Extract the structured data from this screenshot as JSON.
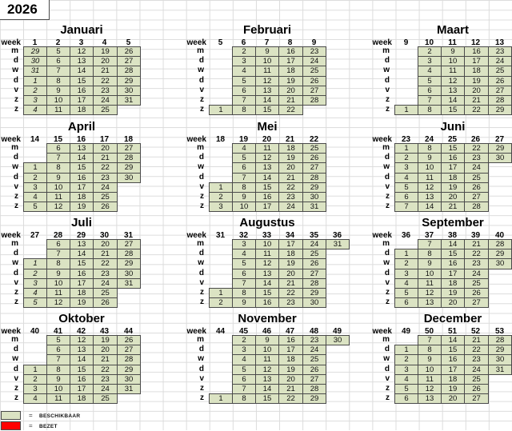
{
  "year": "2026",
  "week_header_label": "week",
  "day_labels": [
    "m",
    "d",
    "w",
    "d",
    "v",
    "z",
    "z"
  ],
  "colors": {
    "available": "#dbe3c3",
    "occupied": "#ff0000",
    "cell_border": "#4a4a4a",
    "gridline": "#dcdcdc"
  },
  "legend": {
    "separator": "=",
    "items": [
      {
        "name": "beschikbaar",
        "label": "BESCHIKBAAR",
        "color": "#dbe3c3"
      },
      {
        "name": "bezet",
        "label": "BEZET",
        "color": "#ff0000"
      }
    ]
  },
  "months": [
    {
      "name": "Januari",
      "weeks": [
        "1",
        "2",
        "3",
        "4",
        "5"
      ],
      "italic_week_col": 0,
      "days": [
        [
          "29",
          "5",
          "12",
          "19",
          "26"
        ],
        [
          "30",
          "6",
          "13",
          "20",
          "27"
        ],
        [
          "31",
          "7",
          "14",
          "21",
          "28"
        ],
        [
          "1",
          "8",
          "15",
          "22",
          "29"
        ],
        [
          "2",
          "9",
          "16",
          "23",
          "30"
        ],
        [
          "3",
          "10",
          "17",
          "24",
          "31"
        ],
        [
          "4",
          "11",
          "18",
          "25",
          ""
        ]
      ]
    },
    {
      "name": "Februari",
      "weeks": [
        "5",
        "6",
        "7",
        "8",
        "9"
      ],
      "italic_week_col": null,
      "days": [
        [
          "",
          "2",
          "9",
          "16",
          "23"
        ],
        [
          "",
          "3",
          "10",
          "17",
          "24"
        ],
        [
          "",
          "4",
          "11",
          "18",
          "25"
        ],
        [
          "",
          "5",
          "12",
          "19",
          "26"
        ],
        [
          "",
          "6",
          "13",
          "20",
          "27"
        ],
        [
          "",
          "7",
          "14",
          "21",
          "28"
        ],
        [
          "1",
          "8",
          "15",
          "22",
          ""
        ]
      ]
    },
    {
      "name": "Maart",
      "weeks": [
        "9",
        "10",
        "11",
        "12",
        "13"
      ],
      "italic_week_col": null,
      "days": [
        [
          "",
          "2",
          "9",
          "16",
          "23"
        ],
        [
          "",
          "3",
          "10",
          "17",
          "24"
        ],
        [
          "",
          "4",
          "11",
          "18",
          "25"
        ],
        [
          "",
          "5",
          "12",
          "19",
          "26"
        ],
        [
          "",
          "6",
          "13",
          "20",
          "27"
        ],
        [
          "",
          "7",
          "14",
          "21",
          "28"
        ],
        [
          "1",
          "8",
          "15",
          "22",
          "29"
        ]
      ]
    },
    {
      "name": "April",
      "weeks": [
        "14",
        "15",
        "16",
        "17",
        "18"
      ],
      "italic_week_col": null,
      "days": [
        [
          "",
          "6",
          "13",
          "20",
          "27"
        ],
        [
          "",
          "7",
          "14",
          "21",
          "28"
        ],
        [
          "1",
          "8",
          "15",
          "22",
          "29"
        ],
        [
          "2",
          "9",
          "16",
          "23",
          "30"
        ],
        [
          "3",
          "10",
          "17",
          "24",
          ""
        ],
        [
          "4",
          "11",
          "18",
          "25",
          ""
        ],
        [
          "5",
          "12",
          "19",
          "26",
          ""
        ]
      ]
    },
    {
      "name": "Mei",
      "weeks": [
        "18",
        "19",
        "20",
        "21",
        "22"
      ],
      "italic_week_col": null,
      "days": [
        [
          "",
          "4",
          "11",
          "18",
          "25"
        ],
        [
          "",
          "5",
          "12",
          "19",
          "26"
        ],
        [
          "",
          "6",
          "13",
          "20",
          "27"
        ],
        [
          "",
          "7",
          "14",
          "21",
          "28"
        ],
        [
          "1",
          "8",
          "15",
          "22",
          "29"
        ],
        [
          "2",
          "9",
          "16",
          "23",
          "30"
        ],
        [
          "3",
          "10",
          "17",
          "24",
          "31"
        ]
      ]
    },
    {
      "name": "Juni",
      "weeks": [
        "23",
        "24",
        "25",
        "26",
        "27"
      ],
      "italic_week_col": null,
      "days": [
        [
          "1",
          "8",
          "15",
          "22",
          "29"
        ],
        [
          "2",
          "9",
          "16",
          "23",
          "30"
        ],
        [
          "3",
          "10",
          "17",
          "24",
          ""
        ],
        [
          "4",
          "11",
          "18",
          "25",
          ""
        ],
        [
          "5",
          "12",
          "19",
          "26",
          ""
        ],
        [
          "6",
          "13",
          "20",
          "27",
          ""
        ],
        [
          "7",
          "14",
          "21",
          "28",
          ""
        ]
      ]
    },
    {
      "name": "Juli",
      "weeks": [
        "27",
        "28",
        "29",
        "30",
        "31"
      ],
      "italic_week_col": 0,
      "days": [
        [
          "",
          "6",
          "13",
          "20",
          "27"
        ],
        [
          "",
          "7",
          "14",
          "21",
          "28"
        ],
        [
          "1",
          "8",
          "15",
          "22",
          "29"
        ],
        [
          "2",
          "9",
          "16",
          "23",
          "30"
        ],
        [
          "3",
          "10",
          "17",
          "24",
          "31"
        ],
        [
          "4",
          "11",
          "18",
          "25",
          ""
        ],
        [
          "5",
          "12",
          "19",
          "26",
          ""
        ]
      ]
    },
    {
      "name": "Augustus",
      "weeks": [
        "31",
        "32",
        "33",
        "34",
        "35",
        "36"
      ],
      "italic_week_col": null,
      "days": [
        [
          "",
          "3",
          "10",
          "17",
          "24",
          "31"
        ],
        [
          "",
          "4",
          "11",
          "18",
          "25",
          ""
        ],
        [
          "",
          "5",
          "12",
          "19",
          "26",
          ""
        ],
        [
          "",
          "6",
          "13",
          "20",
          "27",
          ""
        ],
        [
          "",
          "7",
          "14",
          "21",
          "28",
          ""
        ],
        [
          "1",
          "8",
          "15",
          "22",
          "29",
          ""
        ],
        [
          "2",
          "9",
          "16",
          "23",
          "30",
          ""
        ]
      ]
    },
    {
      "name": "September",
      "weeks": [
        "36",
        "37",
        "38",
        "39",
        "40"
      ],
      "italic_week_col": null,
      "days": [
        [
          "",
          "7",
          "14",
          "21",
          "28"
        ],
        [
          "1",
          "8",
          "15",
          "22",
          "29"
        ],
        [
          "2",
          "9",
          "16",
          "23",
          "30"
        ],
        [
          "3",
          "10",
          "17",
          "24",
          ""
        ],
        [
          "4",
          "11",
          "18",
          "25",
          ""
        ],
        [
          "5",
          "12",
          "19",
          "26",
          ""
        ],
        [
          "6",
          "13",
          "20",
          "27",
          ""
        ]
      ]
    },
    {
      "name": "Oktober",
      "weeks": [
        "40",
        "41",
        "42",
        "43",
        "44"
      ],
      "italic_week_col": null,
      "days": [
        [
          "",
          "5",
          "12",
          "19",
          "26"
        ],
        [
          "",
          "6",
          "13",
          "20",
          "27"
        ],
        [
          "",
          "7",
          "14",
          "21",
          "28"
        ],
        [
          "1",
          "8",
          "15",
          "22",
          "29"
        ],
        [
          "2",
          "9",
          "16",
          "23",
          "30"
        ],
        [
          "3",
          "10",
          "17",
          "24",
          "31"
        ],
        [
          "4",
          "11",
          "18",
          "25",
          ""
        ]
      ]
    },
    {
      "name": "November",
      "weeks": [
        "44",
        "45",
        "46",
        "47",
        "48",
        "49"
      ],
      "italic_week_col": null,
      "days": [
        [
          "",
          "2",
          "9",
          "16",
          "23",
          "30"
        ],
        [
          "",
          "3",
          "10",
          "17",
          "24",
          ""
        ],
        [
          "",
          "4",
          "11",
          "18",
          "25",
          ""
        ],
        [
          "",
          "5",
          "12",
          "19",
          "26",
          ""
        ],
        [
          "",
          "6",
          "13",
          "20",
          "27",
          ""
        ],
        [
          "",
          "7",
          "14",
          "21",
          "28",
          ""
        ],
        [
          "1",
          "8",
          "15",
          "22",
          "29",
          ""
        ]
      ]
    },
    {
      "name": "December",
      "weeks": [
        "49",
        "50",
        "51",
        "52",
        "53"
      ],
      "italic_week_col": null,
      "days": [
        [
          "",
          "7",
          "14",
          "21",
          "28"
        ],
        [
          "1",
          "8",
          "15",
          "22",
          "29"
        ],
        [
          "2",
          "9",
          "16",
          "23",
          "30"
        ],
        [
          "3",
          "10",
          "17",
          "24",
          "31"
        ],
        [
          "4",
          "11",
          "18",
          "25",
          ""
        ],
        [
          "5",
          "12",
          "19",
          "26",
          ""
        ],
        [
          "6",
          "13",
          "20",
          "27",
          ""
        ]
      ]
    }
  ]
}
